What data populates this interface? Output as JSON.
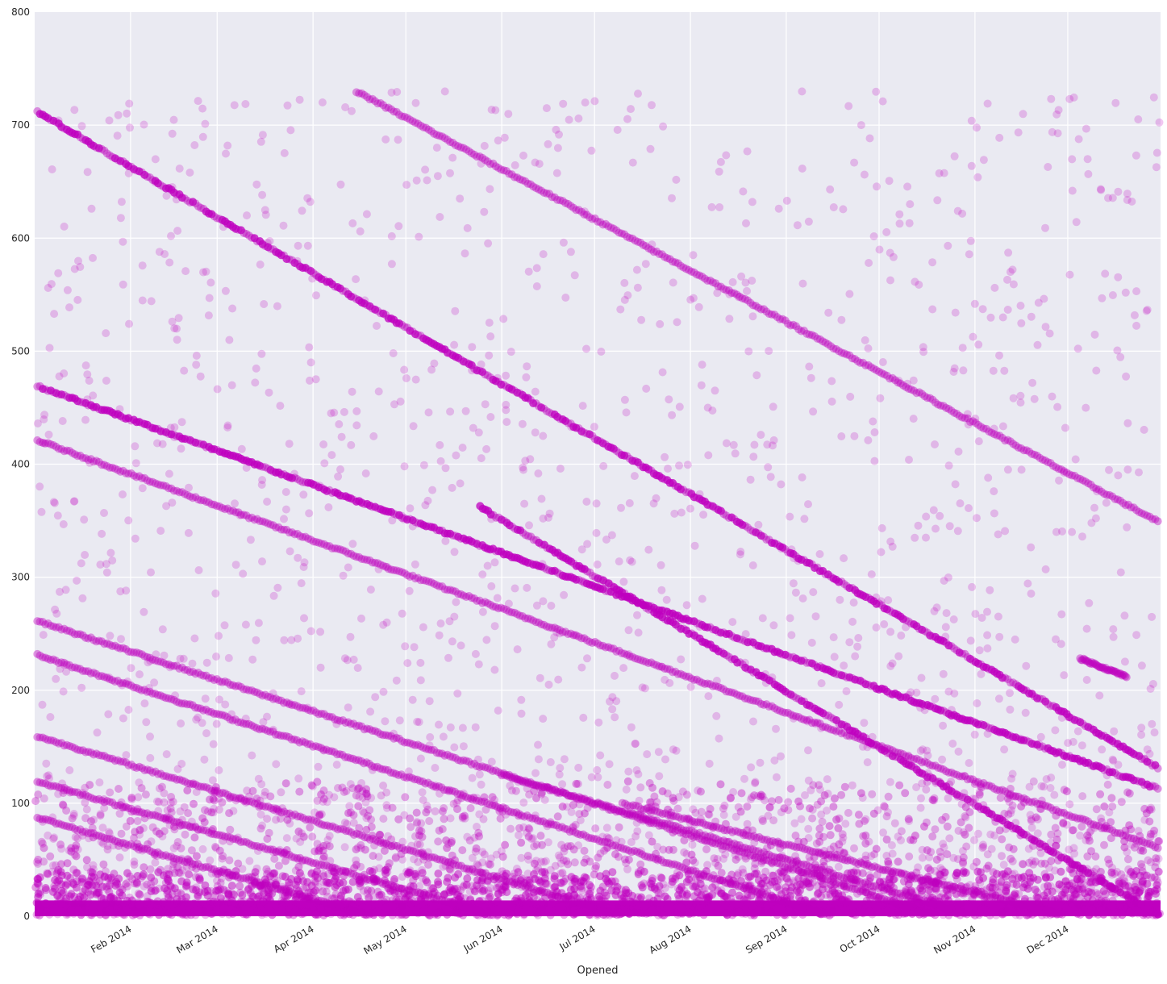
{
  "chart_data": {
    "type": "scatter",
    "title": "",
    "xlabel": "Opened",
    "ylabel": "",
    "x_range": [
      "2014-01-01",
      "2014-12-31"
    ],
    "ylim": [
      0,
      800
    ],
    "y_ticks": [
      0,
      100,
      200,
      300,
      400,
      500,
      600,
      700,
      800
    ],
    "x_ticks": [
      {
        "date": "2014-02-01",
        "label": "Feb 2014"
      },
      {
        "date": "2014-03-01",
        "label": "Mar 2014"
      },
      {
        "date": "2014-04-01",
        "label": "Apr 2014"
      },
      {
        "date": "2014-05-01",
        "label": "May 2014"
      },
      {
        "date": "2014-06-01",
        "label": "Jun 2014"
      },
      {
        "date": "2014-07-01",
        "label": "Jul 2014"
      },
      {
        "date": "2014-08-01",
        "label": "Aug 2014"
      },
      {
        "date": "2014-09-01",
        "label": "Sep 2014"
      },
      {
        "date": "2014-10-01",
        "label": "Oct 2014"
      },
      {
        "date": "2014-11-01",
        "label": "Nov 2014"
      },
      {
        "date": "2014-12-01",
        "label": "Dec 2014"
      }
    ],
    "grid": true,
    "legend": "none",
    "colors": {
      "background": "#EAEAF2",
      "marker": "#BF00BF",
      "grid": "#FFFFFF"
    },
    "diagonal_bands": [
      {
        "from": [
          "2014-01-01",
          713
        ],
        "to": [
          "2014-12-31",
          130
        ]
      },
      {
        "from": [
          "2014-04-15",
          730
        ],
        "to": [
          "2014-12-31",
          348
        ]
      },
      {
        "from": [
          "2014-01-01",
          470
        ],
        "to": [
          "2014-12-31",
          112
        ]
      },
      {
        "from": [
          "2014-01-01",
          422
        ],
        "to": [
          "2014-12-31",
          60
        ]
      },
      {
        "from": [
          "2014-01-01",
          262
        ],
        "to": [
          "2014-10-20",
          0
        ]
      },
      {
        "from": [
          "2014-01-01",
          232
        ],
        "to": [
          "2014-09-15",
          0
        ]
      },
      {
        "from": [
          "2014-01-01",
          160
        ],
        "to": [
          "2014-07-10",
          0
        ]
      },
      {
        "from": [
          "2014-01-01",
          120
        ],
        "to": [
          "2014-05-30",
          0
        ]
      },
      {
        "from": [
          "2014-01-01",
          88
        ],
        "to": [
          "2014-04-20",
          0
        ]
      },
      {
        "from": [
          "2014-05-25",
          362
        ],
        "to": [
          "2014-12-31",
          0
        ]
      },
      {
        "from": [
          "2014-06-01",
          125
        ],
        "to": [
          "2014-11-01",
          0
        ]
      },
      {
        "from": [
          "2014-07-10",
          100
        ],
        "to": [
          "2014-12-01",
          0
        ]
      },
      {
        "from": [
          "2014-12-05",
          228
        ],
        "to": [
          "2014-12-20",
          212
        ]
      }
    ]
  }
}
